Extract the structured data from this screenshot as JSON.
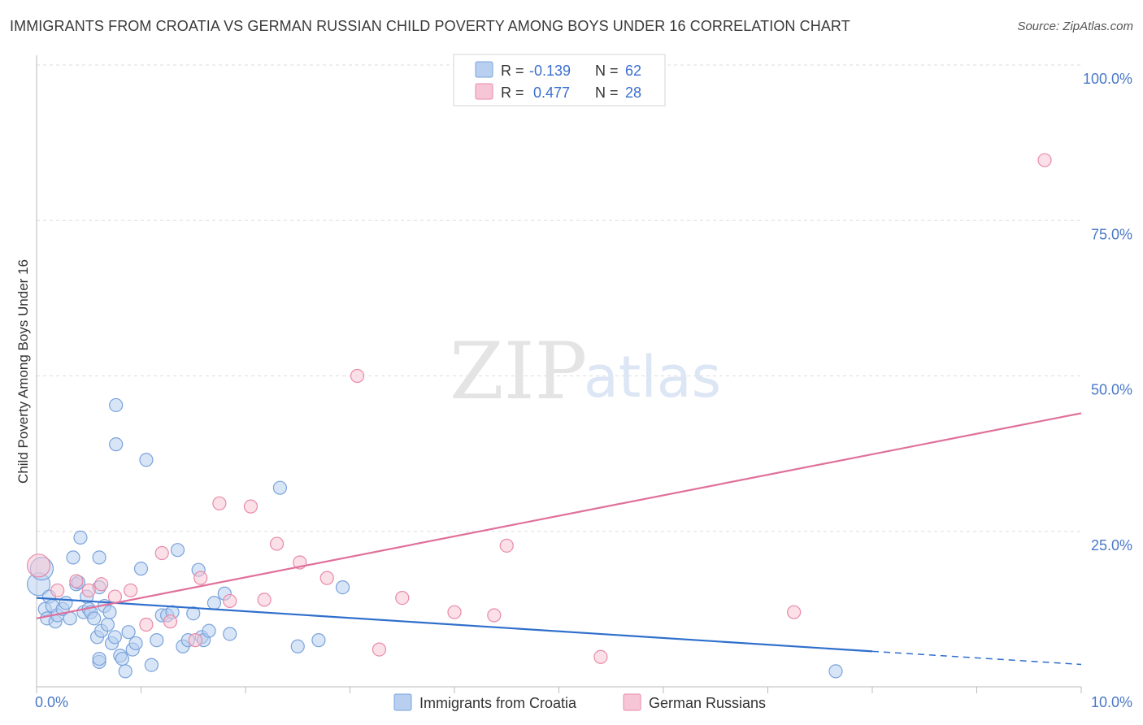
{
  "title": "IMMIGRANTS FROM CROATIA VS GERMAN RUSSIAN CHILD POVERTY AMONG BOYS UNDER 16 CORRELATION CHART",
  "source": "Source: ZipAtlas.com",
  "watermark": {
    "zip": "ZIP",
    "atlas": "atlas"
  },
  "colors": {
    "croatia_fill": "#b8cff0",
    "croatia_stroke": "#7aa3dc",
    "croatia_line": "#2f6fcc",
    "russian_fill": "#f7c6d6",
    "russian_stroke": "#e88aaa",
    "russian_line": "#e0709a",
    "tick_color": "#4a78c8",
    "grid": "#dddddd"
  },
  "chart_data": {
    "type": "scatter",
    "title": "IMMIGRANTS FROM CROATIA VS GERMAN RUSSIAN CHILD POVERTY AMONG BOYS UNDER 16 CORRELATION CHART",
    "xlabel": "",
    "ylabel": "Child Poverty Among Boys Under 16",
    "xlim": [
      0,
      10
    ],
    "ylim": [
      0,
      100
    ],
    "x_ticks": [
      {
        "value": 0,
        "label": "0.0%"
      },
      {
        "value": 10,
        "label": "10.0%"
      }
    ],
    "y_ticks": [
      {
        "value": 25,
        "label": "25.0%"
      },
      {
        "value": 50,
        "label": "50.0%"
      },
      {
        "value": 75,
        "label": "75.0%"
      },
      {
        "value": 100,
        "label": "100.0%"
      }
    ],
    "legend": [
      {
        "series": "Immigrants from Croatia",
        "r_label": "R =",
        "r_value": "-0.139",
        "n_label": "N =",
        "n_value": "62"
      },
      {
        "series": "German Russians",
        "r_label": "R =",
        "r_value": "0.477",
        "n_label": "N =",
        "n_value": "28"
      }
    ],
    "series": [
      {
        "name": "Immigrants from Croatia",
        "color_key": "croatia",
        "trend": {
          "x0": 0,
          "y0": 14.3,
          "x1": 8.0,
          "y1": 5.7,
          "dash_to_x": 10,
          "dash_to_y": 3.6
        },
        "points": [
          [
            0.02,
            16.5,
            3
          ],
          [
            0.05,
            19.0,
            2
          ],
          [
            0.08,
            12.5,
            1
          ],
          [
            0.1,
            11.0,
            1
          ],
          [
            0.12,
            14.5,
            1
          ],
          [
            0.15,
            13.0,
            1
          ],
          [
            0.18,
            10.5,
            1
          ],
          [
            0.2,
            11.5,
            1
          ],
          [
            0.25,
            12.5,
            1
          ],
          [
            0.28,
            13.5,
            1
          ],
          [
            0.32,
            11.0,
            1
          ],
          [
            0.35,
            20.8,
            1
          ],
          [
            0.38,
            16.5,
            1
          ],
          [
            0.4,
            16.8,
            1
          ],
          [
            0.42,
            24.0,
            1
          ],
          [
            0.45,
            12.0,
            1
          ],
          [
            0.48,
            14.5,
            1
          ],
          [
            0.5,
            12.5,
            1
          ],
          [
            0.52,
            12.0,
            1
          ],
          [
            0.55,
            11.0,
            1
          ],
          [
            0.58,
            8.0,
            1
          ],
          [
            0.6,
            16.0,
            1
          ],
          [
            0.62,
            9.0,
            1
          ],
          [
            0.6,
            4.0,
            1
          ],
          [
            0.6,
            4.5,
            1
          ],
          [
            0.6,
            20.8,
            1
          ],
          [
            0.65,
            13.0,
            1
          ],
          [
            0.68,
            10.0,
            1
          ],
          [
            0.7,
            12.0,
            1
          ],
          [
            0.72,
            7.0,
            1
          ],
          [
            0.75,
            8.0,
            1
          ],
          [
            0.76,
            45.3,
            1
          ],
          [
            0.76,
            39.0,
            1
          ],
          [
            0.8,
            5.0,
            1
          ],
          [
            0.82,
            4.5,
            1
          ],
          [
            0.85,
            2.5,
            1
          ],
          [
            0.88,
            8.8,
            1
          ],
          [
            0.92,
            6.0,
            1
          ],
          [
            0.95,
            7.0,
            1
          ],
          [
            1.0,
            19.0,
            1
          ],
          [
            1.05,
            36.5,
            1
          ],
          [
            1.1,
            3.5,
            1
          ],
          [
            1.15,
            7.5,
            1
          ],
          [
            1.2,
            11.5,
            1
          ],
          [
            1.25,
            11.5,
            1
          ],
          [
            1.3,
            12.0,
            1
          ],
          [
            1.35,
            22.0,
            1
          ],
          [
            1.4,
            6.5,
            1
          ],
          [
            1.45,
            7.5,
            1
          ],
          [
            1.5,
            11.8,
            1
          ],
          [
            1.55,
            18.8,
            1
          ],
          [
            1.58,
            8.0,
            1
          ],
          [
            1.6,
            7.5,
            1
          ],
          [
            1.65,
            9.0,
            1
          ],
          [
            1.7,
            13.5,
            1
          ],
          [
            1.8,
            15.0,
            1
          ],
          [
            1.85,
            8.5,
            1
          ],
          [
            2.33,
            32.0,
            1
          ],
          [
            2.5,
            6.5,
            1
          ],
          [
            2.7,
            7.5,
            1
          ],
          [
            2.93,
            16.0,
            1
          ],
          [
            7.65,
            2.5,
            1
          ]
        ]
      },
      {
        "name": "German Russians",
        "color_key": "russian",
        "trend": {
          "x0": 0,
          "y0": 11.0,
          "x1": 10,
          "y1": 44.0
        },
        "points": [
          [
            0.02,
            19.5,
            3
          ],
          [
            0.2,
            15.5,
            1
          ],
          [
            0.38,
            17.0,
            1
          ],
          [
            0.5,
            15.5,
            1
          ],
          [
            0.62,
            16.5,
            1
          ],
          [
            0.75,
            14.5,
            1
          ],
          [
            0.9,
            15.5,
            1
          ],
          [
            1.05,
            10.0,
            1
          ],
          [
            1.2,
            21.5,
            1
          ],
          [
            1.28,
            10.5,
            1
          ],
          [
            1.52,
            7.5,
            1
          ],
          [
            1.57,
            17.5,
            1
          ],
          [
            1.85,
            13.8,
            1
          ],
          [
            1.75,
            29.5,
            1
          ],
          [
            2.05,
            29.0,
            1
          ],
          [
            2.18,
            14.0,
            1
          ],
          [
            2.3,
            23.0,
            1
          ],
          [
            2.52,
            20.0,
            1
          ],
          [
            2.78,
            17.5,
            1
          ],
          [
            3.07,
            50.0,
            1
          ],
          [
            3.28,
            6.0,
            1
          ],
          [
            3.5,
            14.3,
            1
          ],
          [
            4.0,
            12.0,
            1
          ],
          [
            4.38,
            11.5,
            1
          ],
          [
            4.5,
            22.7,
            1
          ],
          [
            5.4,
            4.8,
            1
          ],
          [
            7.25,
            12.0,
            1
          ],
          [
            9.65,
            84.7,
            1
          ]
        ]
      }
    ]
  }
}
